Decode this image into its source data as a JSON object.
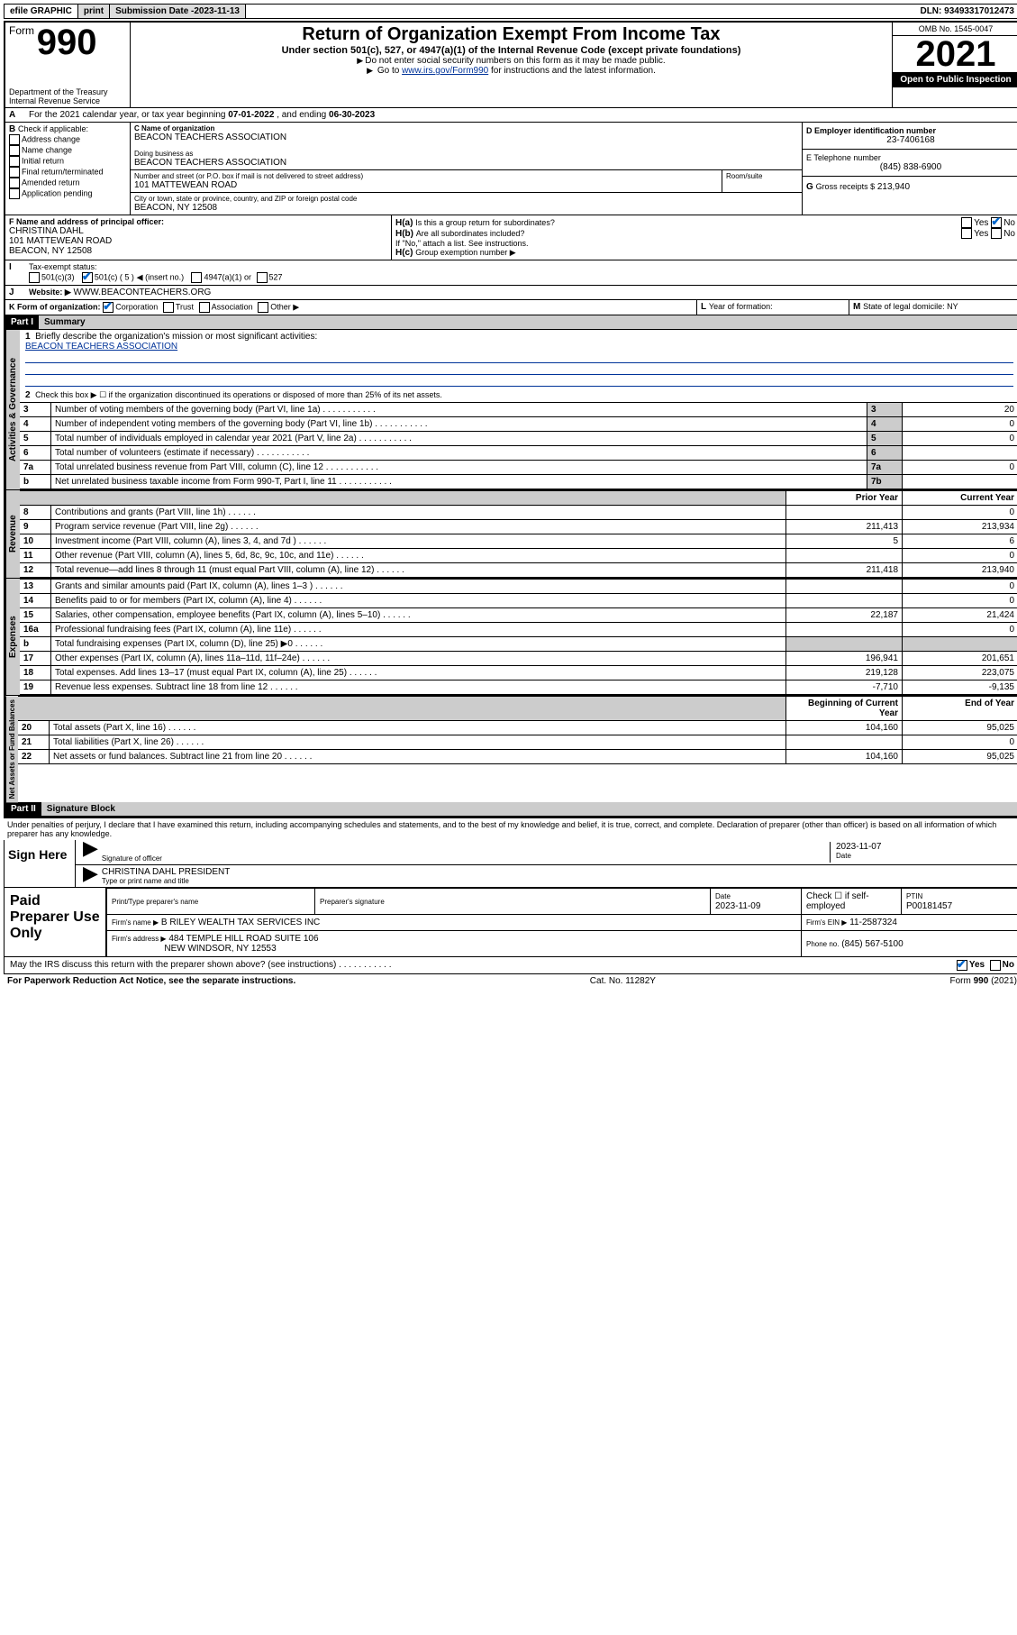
{
  "topbar": {
    "efile": "efile GRAPHIC",
    "print": "print",
    "sub_label": "Submission Date - ",
    "sub_date": "2023-11-13",
    "dln": "DLN: 93493317012473"
  },
  "header": {
    "form_prefix": "Form",
    "form_num": "990",
    "title": "Return of Organization Exempt From Income Tax",
    "subtitle": "Under section 501(c), 527, or 4947(a)(1) of the Internal Revenue Code (except private foundations)",
    "note1": "Do not enter social security numbers on this form as it may be made public.",
    "note2_pre": "Go to ",
    "note2_link": "www.irs.gov/Form990",
    "note2_post": " for instructions and the latest information.",
    "dept": "Department of the Treasury",
    "irs": "Internal Revenue Service",
    "omb": "OMB No. 1545-0047",
    "year": "2021",
    "open": "Open to Public Inspection"
  },
  "A": {
    "text_pre": "For the 2021 calendar year, or tax year beginning ",
    "begin": "07-01-2022",
    "mid": ", and ending ",
    "end": "06-30-2023"
  },
  "B": {
    "label": "B",
    "check_if": "Check if applicable:",
    "opts": [
      "Address change",
      "Name change",
      "Initial return",
      "Final return/terminated",
      "Amended return",
      "Application pending"
    ]
  },
  "C": {
    "name_lbl": "C Name of organization",
    "name": "BEACON TEACHERS ASSOCIATION",
    "dba_lbl": "Doing business as",
    "dba": "BEACON TEACHERS ASSOCIATION",
    "street_lbl": "Number and street (or P.O. box if mail is not delivered to street address)",
    "room_lbl": "Room/suite",
    "street": "101 MATTEWEAN ROAD",
    "city_lbl": "City or town, state or province, country, and ZIP or foreign postal code",
    "city": "BEACON, NY  12508"
  },
  "D": {
    "lbl": "D Employer identification number",
    "val": "23-7406168"
  },
  "E": {
    "lbl": "E Telephone number",
    "val": "(845) 838-6900"
  },
  "G": {
    "lbl": "G",
    "txt": "Gross receipts $",
    "val": "213,940"
  },
  "F": {
    "lbl": "F  Name and address of principal officer:",
    "name": "CHRISTINA DAHL",
    "street": "101 MATTEWEAN ROAD",
    "city": "BEACON, NY  12508"
  },
  "H": {
    "a": "Is this a group return for subordinates?",
    "b": "Are all subordinates included?",
    "b_note": "If \"No,\" attach a list. See instructions.",
    "c": "Group exemption number ▶",
    "yes": "Yes",
    "no": "No"
  },
  "I": {
    "lbl": "Tax-exempt status:",
    "o1": "501(c)(3)",
    "o2a": "501(c) ( 5 )",
    "o2b": "◀ (insert no.)",
    "o3": "4947(a)(1) or",
    "o4": "527"
  },
  "J": {
    "lbl": "Website: ▶",
    "val": "WWW.BEACONTEACHERS.ORG"
  },
  "K": {
    "lbl": "K Form of organization:",
    "opts": [
      "Corporation",
      "Trust",
      "Association",
      "Other ▶"
    ]
  },
  "L": {
    "lbl": "L",
    "txt": "Year of formation:"
  },
  "M": {
    "lbl": "M",
    "txt": "State of legal domicile: NY"
  },
  "part1": {
    "num": "Part I",
    "title": "Summary"
  },
  "summary": {
    "l1": "Briefly describe the organization's mission or most significant activities:",
    "l1v": "BEACON TEACHERS ASSOCIATION",
    "l2": "Check this box ▶ ☐  if the organization discontinued its operations or disposed of more than 25% of its net assets.",
    "rows_gov": [
      {
        "n": "3",
        "t": "Number of voting members of the governing body (Part VI, line 1a)",
        "b": "3",
        "v": "20"
      },
      {
        "n": "4",
        "t": "Number of independent voting members of the governing body (Part VI, line 1b)",
        "b": "4",
        "v": "0"
      },
      {
        "n": "5",
        "t": "Total number of individuals employed in calendar year 2021 (Part V, line 2a)",
        "b": "5",
        "v": "0"
      },
      {
        "n": "6",
        "t": "Total number of volunteers (estimate if necessary)",
        "b": "6",
        "v": ""
      },
      {
        "n": "7a",
        "t": "Total unrelated business revenue from Part VIII, column (C), line 12",
        "b": "7a",
        "v": "0"
      },
      {
        "n": "b",
        "t": "Net unrelated business taxable income from Form 990-T, Part I, line 11",
        "b": "7b",
        "v": ""
      }
    ],
    "hdr_prior": "Prior Year",
    "hdr_curr": "Current Year",
    "rows_rev": [
      {
        "n": "8",
        "t": "Contributions and grants (Part VIII, line 1h)",
        "p": "",
        "c": "0"
      },
      {
        "n": "9",
        "t": "Program service revenue (Part VIII, line 2g)",
        "p": "211,413",
        "c": "213,934"
      },
      {
        "n": "10",
        "t": "Investment income (Part VIII, column (A), lines 3, 4, and 7d )",
        "p": "5",
        "c": "6"
      },
      {
        "n": "11",
        "t": "Other revenue (Part VIII, column (A), lines 5, 6d, 8c, 9c, 10c, and 11e)",
        "p": "",
        "c": "0"
      },
      {
        "n": "12",
        "t": "Total revenue—add lines 8 through 11 (must equal Part VIII, column (A), line 12)",
        "p": "211,418",
        "c": "213,940"
      }
    ],
    "rows_exp": [
      {
        "n": "13",
        "t": "Grants and similar amounts paid (Part IX, column (A), lines 1–3 )",
        "p": "",
        "c": "0"
      },
      {
        "n": "14",
        "t": "Benefits paid to or for members (Part IX, column (A), line 4)",
        "p": "",
        "c": "0"
      },
      {
        "n": "15",
        "t": "Salaries, other compensation, employee benefits (Part IX, column (A), lines 5–10)",
        "p": "22,187",
        "c": "21,424"
      },
      {
        "n": "16a",
        "t": "Professional fundraising fees (Part IX, column (A), line 11e)",
        "p": "",
        "c": "0"
      },
      {
        "n": "b",
        "t": "Total fundraising expenses (Part IX, column (D), line 25) ▶0",
        "p": "shade",
        "c": "shade"
      },
      {
        "n": "17",
        "t": "Other expenses (Part IX, column (A), lines 11a–11d, 11f–24e)",
        "p": "196,941",
        "c": "201,651"
      },
      {
        "n": "18",
        "t": "Total expenses. Add lines 13–17 (must equal Part IX, column (A), line 25)",
        "p": "219,128",
        "c": "223,075"
      },
      {
        "n": "19",
        "t": "Revenue less expenses. Subtract line 18 from line 12",
        "p": "-7,710",
        "c": "-9,135"
      }
    ],
    "hdr_beg": "Beginning of Current Year",
    "hdr_end": "End of Year",
    "rows_net": [
      {
        "n": "20",
        "t": "Total assets (Part X, line 16)",
        "p": "104,160",
        "c": "95,025"
      },
      {
        "n": "21",
        "t": "Total liabilities (Part X, line 26)",
        "p": "",
        "c": "0"
      },
      {
        "n": "22",
        "t": "Net assets or fund balances. Subtract line 21 from line 20",
        "p": "104,160",
        "c": "95,025"
      }
    ]
  },
  "part2": {
    "num": "Part II",
    "title": "Signature Block"
  },
  "sig": {
    "penalty": "Under penalties of perjury, I declare that I have examined this return, including accompanying schedules and statements, and to the best of my knowledge and belief, it is true, correct, and complete. Declaration of preparer (other than officer) is based on all information of which preparer has any knowledge.",
    "sign_here": "Sign Here",
    "sig_officer": "Signature of officer",
    "date_lbl": "Date",
    "date": "2023-11-07",
    "name": "CHRISTINA DAHL  PRESIDENT",
    "name_lbl": "Type or print name and title",
    "paid": "Paid Preparer Use Only",
    "pt_name_lbl": "Print/Type preparer's name",
    "pt_sig_lbl": "Preparer's signature",
    "pt_date_lbl": "Date",
    "pt_date": "2023-11-09",
    "pt_check": "Check ☐ if self-employed",
    "ptin_lbl": "PTIN",
    "ptin": "P00181457",
    "firm_name_lbl": "Firm's name    ▶",
    "firm_name": "B RILEY WEALTH TAX SERVICES INC",
    "firm_ein_lbl": "Firm's EIN ▶",
    "firm_ein": "11-2587324",
    "firm_addr_lbl": "Firm's address ▶",
    "firm_addr1": "484 TEMPLE HILL ROAD SUITE 106",
    "firm_addr2": "NEW WINDSOR, NY  12553",
    "phone_lbl": "Phone no.",
    "phone": "(845) 567-5100",
    "may_irs": "May the IRS discuss this return with the preparer shown above? (see instructions)"
  },
  "footer": {
    "pra": "For Paperwork Reduction Act Notice, see the separate instructions.",
    "cat": "Cat. No. 11282Y",
    "form": "Form 990 (2021)"
  },
  "vtabs": {
    "gov": "Activities & Governance",
    "rev": "Revenue",
    "exp": "Expenses",
    "net": "Net Assets or Fund Balances"
  }
}
